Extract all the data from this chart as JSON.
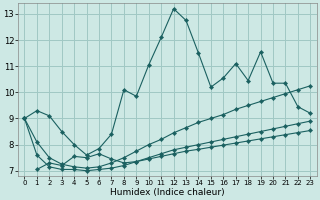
{
  "xlabel": "Humidex (Indice chaleur)",
  "background_color": "#cde8e4",
  "grid_color": "#a0c8c4",
  "line_color": "#1a6060",
  "xlim": [
    -0.5,
    23.5
  ],
  "ylim": [
    6.8,
    13.4
  ],
  "xticks": [
    0,
    1,
    2,
    3,
    4,
    5,
    6,
    7,
    8,
    9,
    10,
    11,
    12,
    13,
    14,
    15,
    16,
    17,
    18,
    19,
    20,
    21,
    22,
    23
  ],
  "yticks": [
    7,
    8,
    9,
    10,
    11,
    12,
    13
  ],
  "line_main_x": [
    0,
    1,
    2,
    3,
    4,
    5,
    6,
    7,
    8,
    9,
    10,
    11,
    12,
    13,
    14,
    15,
    16,
    17,
    18,
    19,
    20,
    21,
    22,
    23
  ],
  "line_main_y": [
    9.0,
    9.3,
    9.1,
    8.5,
    8.0,
    7.6,
    7.85,
    8.4,
    10.1,
    9.85,
    11.05,
    12.1,
    13.2,
    12.75,
    11.5,
    10.2,
    10.55,
    11.1,
    10.45,
    11.55,
    10.35,
    10.35,
    9.45,
    9.2
  ],
  "line_upper_x": [
    0,
    1,
    2,
    3,
    4,
    5,
    6,
    7,
    8,
    9,
    10,
    11,
    12,
    13,
    14,
    15,
    16,
    17,
    18,
    19,
    20,
    21,
    22,
    23
  ],
  "line_upper_y": [
    9.0,
    8.1,
    7.5,
    7.25,
    7.15,
    7.1,
    7.15,
    7.3,
    7.5,
    7.75,
    8.0,
    8.2,
    8.45,
    8.65,
    8.85,
    9.0,
    9.15,
    9.35,
    9.5,
    9.65,
    9.8,
    9.95,
    10.1,
    10.25
  ],
  "line_lower_x": [
    0,
    1,
    2,
    3,
    4,
    5,
    6,
    7,
    8,
    9,
    10,
    11,
    12,
    13,
    14,
    15,
    16,
    17,
    18,
    19,
    20,
    21,
    22,
    23
  ],
  "line_lower_y": [
    9.0,
    7.6,
    7.15,
    7.05,
    7.05,
    7.0,
    7.05,
    7.1,
    7.2,
    7.35,
    7.5,
    7.65,
    7.8,
    7.9,
    8.0,
    8.1,
    8.2,
    8.3,
    8.4,
    8.5,
    8.6,
    8.7,
    8.8,
    8.9
  ],
  "line_zigzag_x": [
    1,
    2,
    3,
    4,
    5,
    6,
    7,
    8,
    9,
    10,
    11,
    12,
    13,
    14,
    15,
    16,
    17,
    18,
    19,
    20,
    21,
    22,
    23
  ],
  "line_zigzag_y": [
    7.05,
    7.3,
    7.2,
    7.55,
    7.5,
    7.65,
    7.45,
    7.3,
    7.35,
    7.45,
    7.55,
    7.65,
    7.75,
    7.82,
    7.9,
    7.98,
    8.06,
    8.14,
    8.22,
    8.3,
    8.38,
    8.46,
    8.54
  ]
}
